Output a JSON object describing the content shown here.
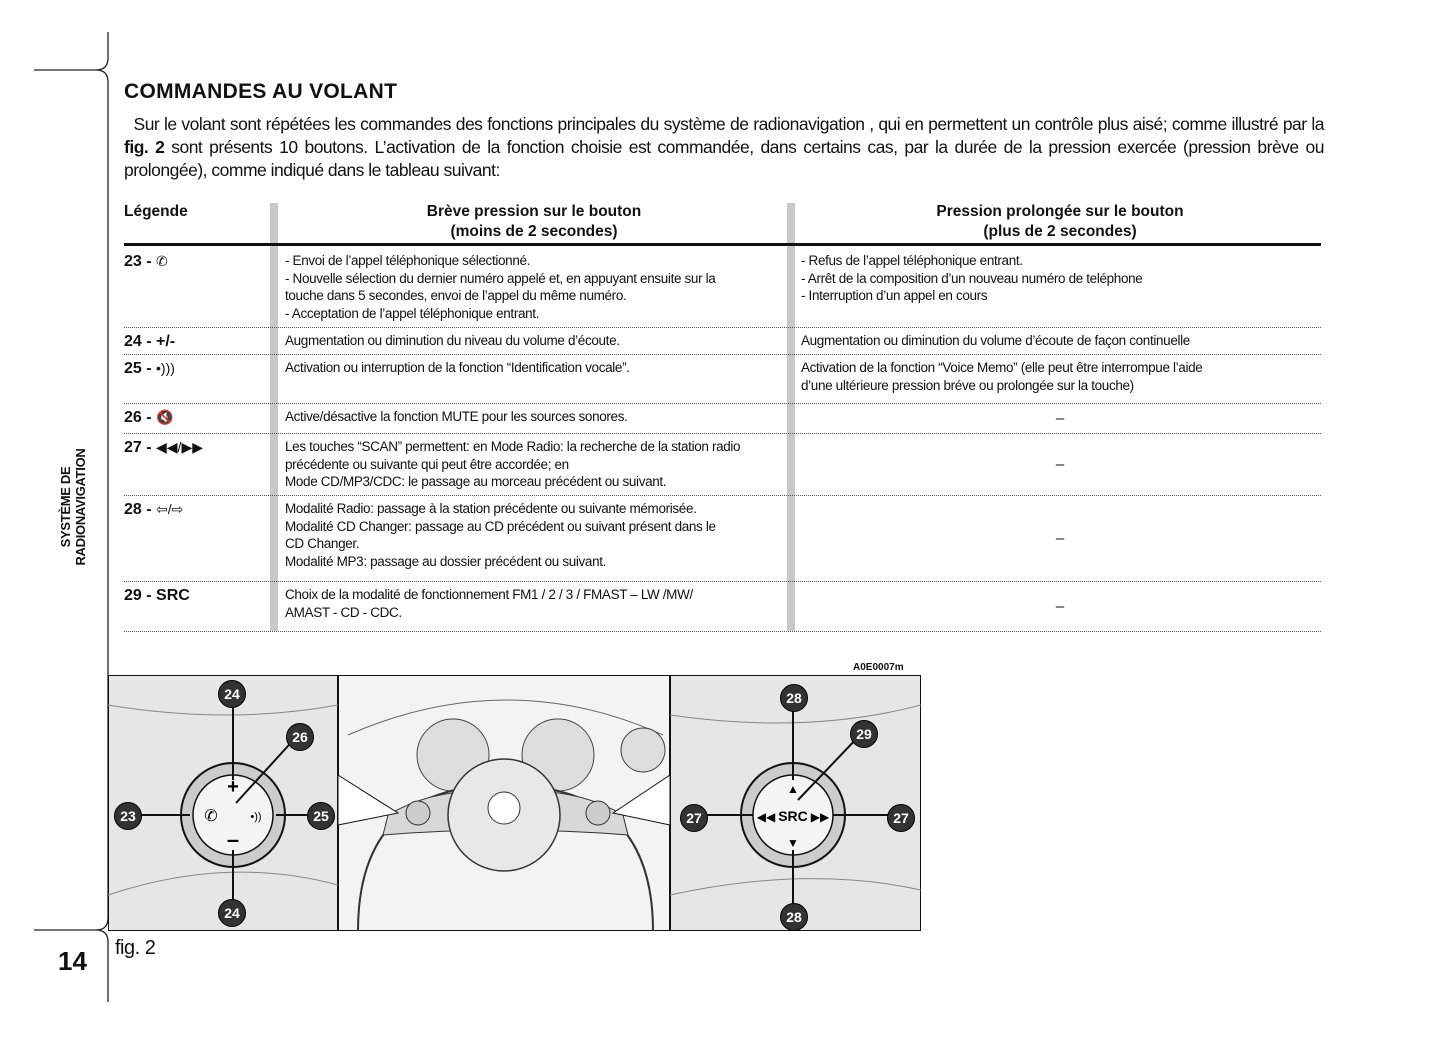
{
  "section_title": "COMMANDES AU VOLANT",
  "intro": {
    "part1": "Sur le volant sont répétées les commandes des fonctions principales du système de radionavigation , qui en permettent un contrôle plus aisé; comme illustré par la ",
    "fig_ref": "fig. 2",
    "part2": " sont présents 10 boutons. L’activation de la fonction choisie est commandée, dans certains cas, par la durée de la pression exercée (pression brève ou prolongée), comme indiqué dans le tableau suivant:"
  },
  "table": {
    "headers": [
      "Légende",
      "Brève pression sur le bouton\n(moins de 2 secondes)",
      "Pression prolongée sur le bouton\n(plus de 2 secondes)"
    ],
    "rows": [
      {
        "legend": "23 - ",
        "icon": "phone-icon",
        "glyph": "✆",
        "short": "- Envoi de l’appel téléphonique sélectionné.\n- Nouvelle sélection du dernier numéro appelé et, en appuyant ensuite sur la\ntouche dans 5 secondes, envoi de l’appel du même numéro.\n- Acceptation de l’appel téléphonique entrant.",
        "long": "- Refus de l’appel téléphonique entrant.\n- Arrêt de la composition d’un nouveau numéro de teléphone\n- Interruption d’un appel en cours"
      },
      {
        "legend": "24 - +/-",
        "short": "Augmentation ou diminution du niveau du volume d’écoute.",
        "long": "Augmentation ou diminution du volume d’écoute de façon continuelle"
      },
      {
        "legend": "25 - ",
        "icon": "voice-icon",
        "glyph": "•)))",
        "short": "Activation ou interruption de la fonction “Identification vocale”.",
        "long": "Activation de la fonction “Voice Memo” (elle peut être interrompue l’aide\nd’une ultérieure pression bréve ou prolongée sur la touche)"
      },
      {
        "legend": "26 - ",
        "icon": "mute-icon",
        "glyph": "🔇",
        "short": "Active/désactive la fonction MUTE pour les sources sonores.",
        "long": "–"
      },
      {
        "legend": "27 - ",
        "icon": "scan-arrows-icon",
        "glyph": "◀◀/▶▶",
        "short": "Les touches “SCAN” permettent: en Mode Radio: la recherche de la station radio\nprécédente ou suivante qui peut être accordée; en\nMode CD/MP3/CDC: le passage au morceau précédent ou suivant.",
        "long": "–"
      },
      {
        "legend": "28 - ",
        "icon": "left-right-arrows-icon",
        "glyph": "⇦/⇨",
        "short": "Modalité Radio: passage à la station précédente ou suivante mémorisée.\nModalité CD Changer: passage au CD précédent ou suivant présent dans le\nCD Changer.\nModalité MP3: passage au dossier précédent ou suivant.",
        "long": "–"
      },
      {
        "legend": "29 - SRC",
        "short": "Choix de la modalité de fonctionnement FM1 / 2 / 3 / FMAST – LW /MW/\nAMAST - CD - CDC.",
        "long": "–"
      }
    ]
  },
  "figure": {
    "code": "A0E0007m",
    "caption": "fig. 2",
    "src_label": "SRC",
    "callouts": [
      "24",
      "26",
      "23",
      "25",
      "24",
      "28",
      "29",
      "27",
      "27",
      "28"
    ]
  },
  "sidebar": {
    "section": "SYSTÈME DE RADIONAVIGATION",
    "page_number": "14"
  }
}
